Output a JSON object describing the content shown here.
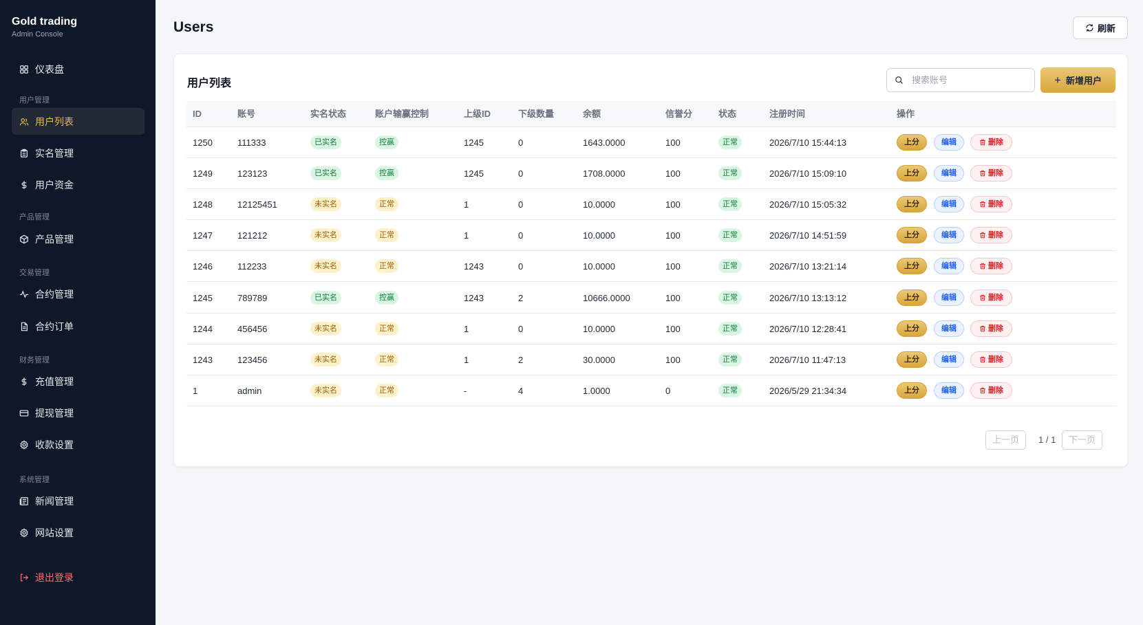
{
  "brand": {
    "title": "Gold trading",
    "subtitle": "Admin Console"
  },
  "sidebar": {
    "items": [
      {
        "label": "仪表盘",
        "icon": "grid-icon"
      },
      {
        "section": "用户管理"
      },
      {
        "label": "用户列表",
        "icon": "users-icon",
        "active": true
      },
      {
        "label": "实名管理",
        "icon": "clipboard-icon"
      },
      {
        "label": "用户资金",
        "icon": "dollar-icon"
      },
      {
        "section": "产品管理"
      },
      {
        "label": "产品管理",
        "icon": "box-icon"
      },
      {
        "section": "交易管理"
      },
      {
        "label": "合约管理",
        "icon": "activity-icon"
      },
      {
        "label": "合约订单",
        "icon": "file-icon"
      },
      {
        "section": "财务管理"
      },
      {
        "label": "充值管理",
        "icon": "dollar-icon"
      },
      {
        "label": "提现管理",
        "icon": "card-icon"
      },
      {
        "label": "收款设置",
        "icon": "gear-icon"
      },
      {
        "section": "系统管理"
      },
      {
        "label": "新闻管理",
        "icon": "newspaper-icon"
      },
      {
        "label": "网站设置",
        "icon": "gear-icon"
      }
    ],
    "logout": {
      "label": "退出登录",
      "icon": "logout-icon"
    }
  },
  "header": {
    "title": "Users",
    "refresh_label": "刷新"
  },
  "card": {
    "title": "用户列表",
    "search_placeholder": "搜索账号",
    "add_label": "新增用户"
  },
  "table": {
    "columns": [
      "ID",
      "账号",
      "实名状态",
      "账户输赢控制",
      "上级ID",
      "下级数量",
      "余额",
      "信誉分",
      "状态",
      "注册时间",
      "操作"
    ],
    "rows": [
      {
        "id": "1250",
        "account": "111333",
        "realname": "已实名",
        "realname_ok": true,
        "control": "控赢",
        "control_flag": true,
        "parent": "1245",
        "children": "0",
        "balance": "1643.0000",
        "credit": "100",
        "status": "正常",
        "registered": "2026/7/10 15:44:13"
      },
      {
        "id": "1249",
        "account": "123123",
        "realname": "已实名",
        "realname_ok": true,
        "control": "控赢",
        "control_flag": true,
        "parent": "1245",
        "children": "0",
        "balance": "1708.0000",
        "credit": "100",
        "status": "正常",
        "registered": "2026/7/10 15:09:10"
      },
      {
        "id": "1248",
        "account": "12125451",
        "realname": "未实名",
        "realname_ok": false,
        "control": "正常",
        "control_flag": false,
        "parent": "1",
        "children": "0",
        "balance": "10.0000",
        "credit": "100",
        "status": "正常",
        "registered": "2026/7/10 15:05:32"
      },
      {
        "id": "1247",
        "account": "121212",
        "realname": "未实名",
        "realname_ok": false,
        "control": "正常",
        "control_flag": false,
        "parent": "1",
        "children": "0",
        "balance": "10.0000",
        "credit": "100",
        "status": "正常",
        "registered": "2026/7/10 14:51:59"
      },
      {
        "id": "1246",
        "account": "112233",
        "realname": "未实名",
        "realname_ok": false,
        "control": "正常",
        "control_flag": false,
        "parent": "1243",
        "children": "0",
        "balance": "10.0000",
        "credit": "100",
        "status": "正常",
        "registered": "2026/7/10 13:21:14"
      },
      {
        "id": "1245",
        "account": "789789",
        "realname": "已实名",
        "realname_ok": true,
        "control": "控赢",
        "control_flag": true,
        "parent": "1243",
        "children": "2",
        "balance": "10666.0000",
        "credit": "100",
        "status": "正常",
        "registered": "2026/7/10 13:13:12"
      },
      {
        "id": "1244",
        "account": "456456",
        "realname": "未实名",
        "realname_ok": false,
        "control": "正常",
        "control_flag": false,
        "parent": "1",
        "children": "0",
        "balance": "10.0000",
        "credit": "100",
        "status": "正常",
        "registered": "2026/7/10 12:28:41"
      },
      {
        "id": "1243",
        "account": "123456",
        "realname": "未实名",
        "realname_ok": false,
        "control": "正常",
        "control_flag": false,
        "parent": "1",
        "children": "2",
        "balance": "30.0000",
        "credit": "100",
        "status": "正常",
        "registered": "2026/7/10 11:47:13"
      },
      {
        "id": "1",
        "account": "admin",
        "realname": "未实名",
        "realname_ok": false,
        "control": "正常",
        "control_flag": false,
        "parent": "-",
        "children": "4",
        "balance": "1.0000",
        "credit": "0",
        "status": "正常",
        "registered": "2026/5/29 21:34:34"
      }
    ],
    "actions": {
      "add_score": "上分",
      "edit": "编辑",
      "delete": "删除"
    }
  },
  "pagination": {
    "prev": "上一页",
    "info": "1 / 1",
    "next": "下一页"
  },
  "colors": {
    "accent": "#d9a63c",
    "sidebar_bg": "#0f1828",
    "active_text": "#e8b84b"
  }
}
